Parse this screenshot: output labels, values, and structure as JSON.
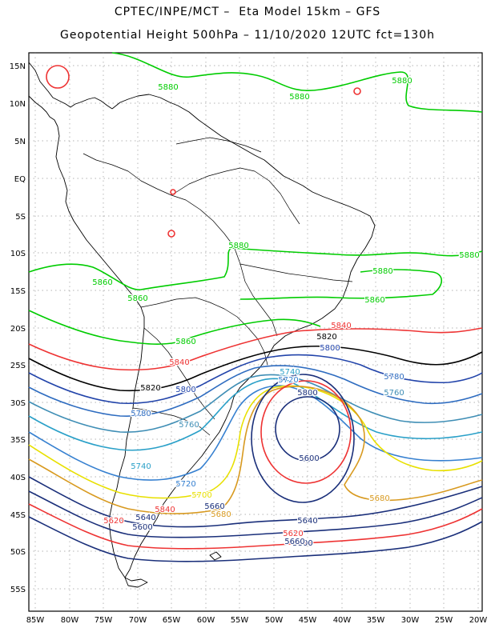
{
  "title_line1": "CPTEC/INPE/MCT –  Eta Model 15km – GFS",
  "title_line2": "Geopotential Height 500hPa – 11/10/2020 12UTC fct=130h",
  "lat_labels": [
    "15N",
    "10N",
    "5N",
    "EQ",
    "5S",
    "10S",
    "15S",
    "20S",
    "25S",
    "30S",
    "35S",
    "40S",
    "45S",
    "50S",
    "55S"
  ],
  "lon_labels": [
    "85W",
    "80W",
    "75W",
    "70W",
    "65W",
    "60W",
    "55W",
    "50W",
    "45W",
    "40W",
    "35W",
    "30W",
    "25W",
    "20W"
  ],
  "contours": [
    {
      "level": "5880",
      "color": "#00cc00"
    },
    {
      "level": "5860",
      "color": "#00cc00"
    },
    {
      "level": "5840",
      "color": "#ee3333"
    },
    {
      "level": "5820",
      "color": "#000000"
    },
    {
      "level": "5800",
      "color": "#2244aa"
    },
    {
      "level": "5780",
      "color": "#2e6cc0"
    },
    {
      "level": "5760",
      "color": "#3f8eb5"
    },
    {
      "level": "5740",
      "color": "#2aa0c8"
    },
    {
      "level": "5720",
      "color": "#3680d0"
    },
    {
      "level": "5700",
      "color": "#e8e000"
    },
    {
      "level": "5680",
      "color": "#d89a20"
    },
    {
      "level": "5660",
      "color": "#1a2f7a"
    },
    {
      "level": "5620",
      "color": "#ee3333"
    },
    {
      "level": "5600",
      "color": "#1a2f7a"
    }
  ],
  "contour_labels": [
    {
      "text": "5880",
      "color": "#00cc00"
    },
    {
      "text": "5880",
      "color": "#00cc00"
    },
    {
      "text": "5880",
      "color": "#00cc00"
    },
    {
      "text": "5880",
      "color": "#00cc00"
    },
    {
      "text": "5880",
      "color": "#00cc00"
    },
    {
      "text": "5880",
      "color": "#00cc00"
    },
    {
      "text": "5860",
      "color": "#00cc00"
    },
    {
      "text": "5860",
      "color": "#00cc00"
    },
    {
      "text": "5860",
      "color": "#00cc00"
    },
    {
      "text": "5860",
      "color": "#00cc00"
    },
    {
      "text": "5840",
      "color": "#ee3333"
    },
    {
      "text": "5840",
      "color": "#ee3333"
    },
    {
      "text": "5820",
      "color": "#000000"
    },
    {
      "text": "5820",
      "color": "#000000"
    },
    {
      "text": "5800",
      "color": "#2244aa"
    },
    {
      "text": "5800",
      "color": "#2244aa"
    },
    {
      "text": "5780",
      "color": "#2e6cc0"
    },
    {
      "text": "5780",
      "color": "#2e6cc0"
    },
    {
      "text": "5760",
      "color": "#3f8eb5"
    },
    {
      "text": "5760",
      "color": "#3f8eb5"
    },
    {
      "text": "5740",
      "color": "#2aa0c8"
    },
    {
      "text": "5740",
      "color": "#2aa0c8"
    },
    {
      "text": "5720",
      "color": "#3680d0"
    },
    {
      "text": "5720",
      "color": "#3680d0"
    },
    {
      "text": "5700",
      "color": "#e8e000"
    },
    {
      "text": "5680",
      "color": "#d89a20"
    },
    {
      "text": "5680",
      "color": "#d89a20"
    },
    {
      "text": "5660",
      "color": "#1a2f7a"
    },
    {
      "text": "5640",
      "color": "#1a2f7a"
    },
    {
      "text": "5620",
      "color": "#ee3333"
    },
    {
      "text": "5620",
      "color": "#ee3333"
    },
    {
      "text": "5600",
      "color": "#1a2f7a"
    },
    {
      "text": "5600",
      "color": "#1a2f7a"
    },
    {
      "text": "5840",
      "color": "#ee3333"
    },
    {
      "text": "5800",
      "color": "#1a2f7a"
    },
    {
      "text": "5800",
      "color": "#1a2f7a"
    },
    {
      "text": "5640",
      "color": "#1a2f7a"
    },
    {
      "text": "5660",
      "color": "#1a2f7a"
    }
  ]
}
